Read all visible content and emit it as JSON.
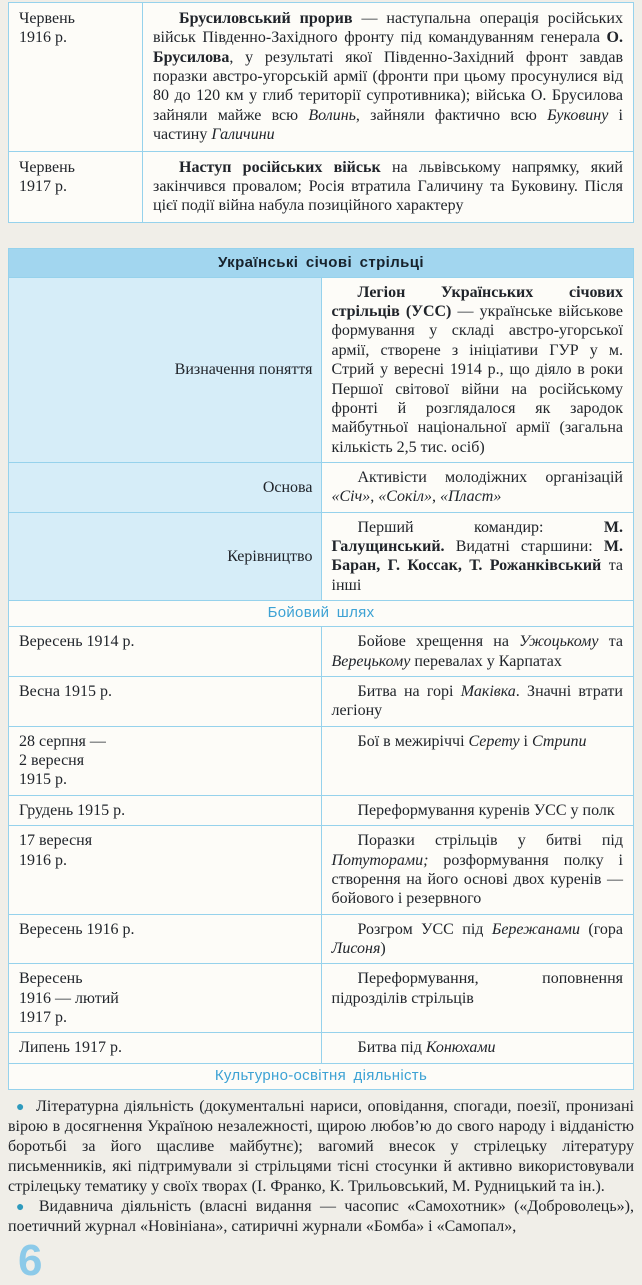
{
  "colors": {
    "page_bg": "#f0eee8",
    "cell_bg": "#fdfcf8",
    "border": "#96d2ec",
    "title_bg": "#a2d6ef",
    "title_text": "#17222c",
    "label_bg": "#d6edf8",
    "section_text": "#3da2d4",
    "bullet": "#2e9abd",
    "text": "#20242a",
    "page_number": "#8ccae9"
  },
  "page": {
    "number": "6"
  },
  "table1": {
    "rows": [
      {
        "date": "Червень\n1916 р.",
        "content": [
          {
            "t": "Брусиловський прорив",
            "b": true
          },
          {
            "t": " — наступальна операція російських військ Південно-Західного фронту під командуванням генерала "
          },
          {
            "t": "О. Брусилова",
            "b": true
          },
          {
            "t": ", у результаті якої Південно-Західний фронт завдав поразки австро-угорській армії (фронти при цьому просунулися від 80 до 120 км у глиб території супротивника); війська О. Брусилова зайняли майже всю "
          },
          {
            "t": "Волинь",
            "i": true
          },
          {
            "t": ", зайняли фактично всю "
          },
          {
            "t": "Буковину",
            "i": true
          },
          {
            "t": " і частину "
          },
          {
            "t": "Галичини",
            "i": true
          }
        ]
      },
      {
        "date": "Червень\n1917 р.",
        "content": [
          {
            "t": "Наступ російських військ",
            "b": true
          },
          {
            "t": " на львівському напрямку, який закінчився провалом; Росія втратила Галичину та Буковину. Після цієї події війна набула позиційного характеру"
          }
        ]
      }
    ]
  },
  "table2": {
    "title": "Українські січові стрільці",
    "def_rows": [
      {
        "label": "Визначення поняття",
        "content": [
          {
            "t": "Легіон Українських січових стрільців (УСС)",
            "b": true
          },
          {
            "t": " — українське військове формування у складі австро-угорської армії, створене з ініціативи ГУР у м. Стрий у вересні 1914 р., що діяло в роки Першої світової війни на російському фронті й розглядалося як зародок майбутньої національної армії (загальна кількість 2,5 тис. осіб)"
          }
        ]
      },
      {
        "label": "Основа",
        "content": [
          {
            "t": "Активісти молодіжних організацій "
          },
          {
            "t": "«Січ»",
            "i": true
          },
          {
            "t": ", "
          },
          {
            "t": "«Сокіл»",
            "i": true
          },
          {
            "t": ", "
          },
          {
            "t": "«Пласт»",
            "i": true
          }
        ]
      },
      {
        "label": "Керівництво",
        "content": [
          {
            "t": "Перший командир: "
          },
          {
            "t": "М. Галущинський.",
            "b": true
          },
          {
            "t": " Видатні старшини: "
          },
          {
            "t": "М. Баран, Г. Коссак, Т. Рожанківський",
            "b": true
          },
          {
            "t": " та інші"
          }
        ]
      }
    ],
    "sections": [
      "Бойовий шлях",
      "Культурно-освітня діяльність"
    ],
    "timeline": [
      {
        "date": "Вересень 1914 р.",
        "content": [
          {
            "t": "Бойове хрещення на "
          },
          {
            "t": "Ужоцькому",
            "i": true
          },
          {
            "t": " та "
          },
          {
            "t": "Верецькому",
            "i": true
          },
          {
            "t": " перевалах у Карпатах"
          }
        ]
      },
      {
        "date": "Весна 1915 р.",
        "content": [
          {
            "t": "Битва на горі "
          },
          {
            "t": "Маківка",
            "i": true
          },
          {
            "t": ". Значні втрати легіону"
          }
        ]
      },
      {
        "date": "28 серпня —\n2 вересня\n1915 р.",
        "content": [
          {
            "t": "Бої в межиріччі "
          },
          {
            "t": "Серету",
            "i": true
          },
          {
            "t": " і "
          },
          {
            "t": "Стрипи",
            "i": true
          }
        ]
      },
      {
        "date": "Грудень 1915 р.",
        "content": [
          {
            "t": "Переформування куренів УСС у полк"
          }
        ]
      },
      {
        "date": "17 вересня\n1916 р.",
        "content": [
          {
            "t": "Поразки стрільців у битві під "
          },
          {
            "t": "Потуторами;",
            "i": true
          },
          {
            "t": " розформування полку і створення на його основі двох куренів — бойового і резервного"
          }
        ]
      },
      {
        "date": "Вересень 1916 р.",
        "content": [
          {
            "t": "Розгром УСС під "
          },
          {
            "t": "Бережанами",
            "i": true
          },
          {
            "t": " (гора "
          },
          {
            "t": "Лисоня",
            "i": true
          },
          {
            "t": ")"
          }
        ]
      },
      {
        "date": "Вересень\n1916 — лютий\n1917 р.",
        "content": [
          {
            "t": "Переформування, поповнення підрозділів стрільців"
          }
        ]
      },
      {
        "date": "Липень 1917 р.",
        "content": [
          {
            "t": "Битва під "
          },
          {
            "t": "Конюхами",
            "i": true
          }
        ]
      }
    ]
  },
  "bullets": [
    "Літературна діяльність (документальні нариси, оповідання, спогади, поезії, пронизані вірою в досягнення Україною незалежності, щирою любов’ю до свого народу і відданістю боротьбі за його щасливе майбутнє); вагомий внесок у стрілецьку літературу письменників, які підтримували зі стрільцями тісні стосунки й активно використовували стрілецьку тематику у своїх творах (І. Франко, К. Трильовський, М. Рудницький та ін.).",
    "Видавнича діяльність (власні видання — часопис «Самохотник» («Доброволець»), поетичний журнал «Новініана», сатиричні журнали «Бомба» і «Самопал»,"
  ]
}
